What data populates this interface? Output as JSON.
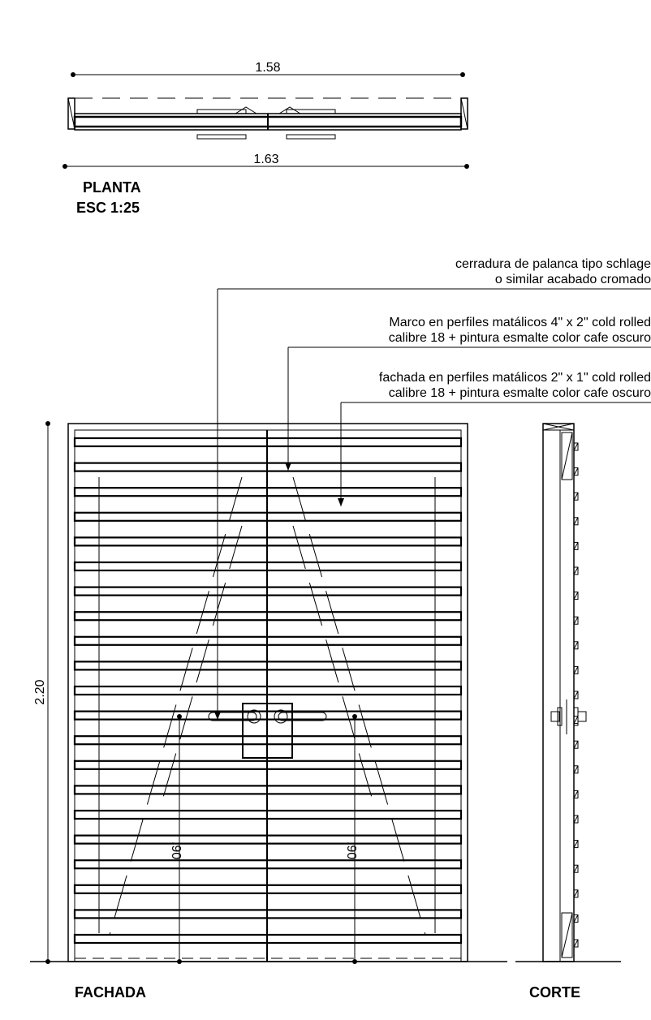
{
  "plan": {
    "dim_inner": "1.58",
    "dim_outer": "1.63",
    "title": "PLANTA",
    "scale": "ESC 1:25"
  },
  "elevation": {
    "title": "FACHADA",
    "height_dim": "2.20",
    "handle_height_left": ".90",
    "handle_height_right": ".90"
  },
  "section": {
    "title": "CORTE"
  },
  "notes": [
    {
      "line1": "cerradura de palanca tipo schlage",
      "line2": "o similar acabado cromado"
    },
    {
      "line1": "Marco en perfiles matálicos 4\" x 2\" cold rolled",
      "line2": "calibre 18 + pintura esmalte color cafe oscuro"
    },
    {
      "line1": "fachada en perfiles matálicos 2\" x 1\" cold rolled",
      "line2": "calibre 18 + pintura esmalte color cafe oscuro"
    }
  ],
  "colors": {
    "line": "#000000",
    "background": "#ffffff"
  }
}
